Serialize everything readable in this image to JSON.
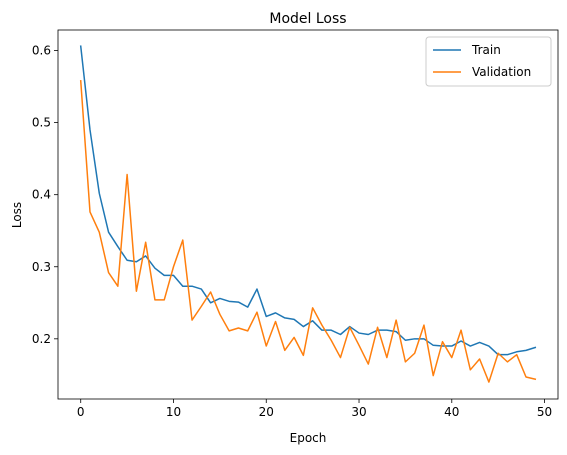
{
  "chart_data": {
    "type": "line",
    "title": "Model Loss",
    "xlabel": "Epoch",
    "ylabel": "Loss",
    "xlim": [
      -2.45,
      51.45
    ],
    "ylim": [
      0.1165,
      0.6285
    ],
    "xticks": [
      0,
      10,
      20,
      30,
      40,
      50
    ],
    "yticks": [
      0.2,
      0.3,
      0.4,
      0.5,
      0.6
    ],
    "grid": false,
    "legend_position": "top-right",
    "x": [
      0,
      1,
      2,
      3,
      4,
      5,
      6,
      7,
      8,
      9,
      10,
      11,
      12,
      13,
      14,
      15,
      16,
      17,
      18,
      19,
      20,
      21,
      22,
      23,
      24,
      25,
      26,
      27,
      28,
      29,
      30,
      31,
      32,
      33,
      34,
      35,
      36,
      37,
      38,
      39,
      40,
      41,
      42,
      43,
      44,
      45,
      46,
      47,
      48,
      49
    ],
    "series": [
      {
        "name": "Train",
        "color": "#1f77b4",
        "values": [
          0.606,
          0.49,
          0.402,
          0.348,
          0.328,
          0.309,
          0.307,
          0.315,
          0.298,
          0.288,
          0.288,
          0.273,
          0.273,
          0.269,
          0.25,
          0.256,
          0.252,
          0.251,
          0.244,
          0.269,
          0.231,
          0.236,
          0.229,
          0.227,
          0.217,
          0.225,
          0.212,
          0.212,
          0.206,
          0.217,
          0.208,
          0.206,
          0.212,
          0.212,
          0.21,
          0.198,
          0.2,
          0.2,
          0.191,
          0.19,
          0.19,
          0.197,
          0.19,
          0.195,
          0.19,
          0.178,
          0.178,
          0.182,
          0.184,
          0.188
        ]
      },
      {
        "name": "Validation",
        "color": "#ff7f0e",
        "values": [
          0.558,
          0.376,
          0.348,
          0.292,
          0.273,
          0.428,
          0.266,
          0.334,
          0.254,
          0.254,
          0.3,
          0.337,
          0.226,
          0.245,
          0.265,
          0.234,
          0.211,
          0.215,
          0.211,
          0.237,
          0.19,
          0.224,
          0.184,
          0.202,
          0.177,
          0.243,
          0.219,
          0.198,
          0.174,
          0.216,
          0.191,
          0.165,
          0.216,
          0.174,
          0.226,
          0.168,
          0.18,
          0.219,
          0.149,
          0.196,
          0.174,
          0.212,
          0.157,
          0.172,
          0.14,
          0.18,
          0.168,
          0.178,
          0.147,
          0.144
        ]
      }
    ]
  }
}
